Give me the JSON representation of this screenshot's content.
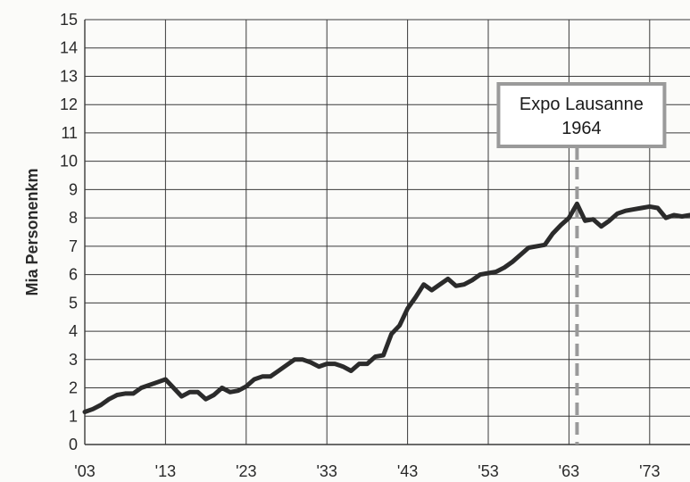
{
  "chart_data": {
    "type": "line",
    "ylabel": "Mia Personenkm",
    "xlabel": "",
    "xlim": [
      1903,
      1978
    ],
    "ylim": [
      0,
      15
    ],
    "x_ticks": [
      1903,
      1913,
      1923,
      1933,
      1943,
      1953,
      1963,
      1973
    ],
    "x_tick_labels": [
      "'03",
      "'13",
      "'23",
      "'33",
      "'43",
      "'53",
      "'63",
      "'73"
    ],
    "y_ticks": [
      0,
      1,
      2,
      3,
      4,
      5,
      6,
      7,
      8,
      9,
      10,
      11,
      12,
      13,
      14,
      15
    ],
    "grid": true,
    "annotation": {
      "lines": [
        "Expo Lausanne",
        "1964"
      ],
      "x": 1964,
      "color": "#9a9a9a"
    },
    "series": [
      {
        "color": "#2b2b2b",
        "x": [
          1903,
          1904,
          1905,
          1906,
          1907,
          1908,
          1909,
          1910,
          1911,
          1912,
          1913,
          1914,
          1915,
          1916,
          1917,
          1918,
          1919,
          1920,
          1921,
          1922,
          1923,
          1924,
          1925,
          1926,
          1927,
          1928,
          1929,
          1930,
          1931,
          1932,
          1933,
          1934,
          1935,
          1936,
          1937,
          1938,
          1939,
          1940,
          1941,
          1942,
          1943,
          1944,
          1945,
          1946,
          1947,
          1948,
          1949,
          1950,
          1951,
          1952,
          1953,
          1954,
          1955,
          1956,
          1957,
          1958,
          1959,
          1960,
          1961,
          1962,
          1963,
          1964,
          1965,
          1966,
          1967,
          1968,
          1969,
          1970,
          1971,
          1972,
          1973,
          1974,
          1975,
          1976,
          1977,
          1978
        ],
        "values": [
          1.15,
          1.25,
          1.4,
          1.6,
          1.75,
          1.8,
          1.8,
          2.0,
          2.1,
          2.2,
          2.3,
          2.0,
          1.7,
          1.85,
          1.85,
          1.6,
          1.75,
          2.0,
          1.85,
          1.9,
          2.05,
          2.3,
          2.4,
          2.4,
          2.6,
          2.8,
          3.0,
          3.0,
          2.9,
          2.75,
          2.85,
          2.85,
          2.75,
          2.6,
          2.85,
          2.85,
          3.1,
          3.15,
          3.9,
          4.2,
          4.8,
          5.2,
          5.65,
          5.45,
          5.65,
          5.85,
          5.6,
          5.65,
          5.8,
          6.0,
          6.05,
          6.1,
          6.25,
          6.45,
          6.7,
          6.95,
          7.0,
          7.05,
          7.45,
          7.75,
          8.0,
          8.5,
          7.9,
          7.95,
          7.7,
          7.9,
          8.15,
          8.25,
          8.3,
          8.35,
          8.4,
          8.35,
          8.0,
          8.1,
          8.05,
          8.1
        ]
      }
    ]
  }
}
